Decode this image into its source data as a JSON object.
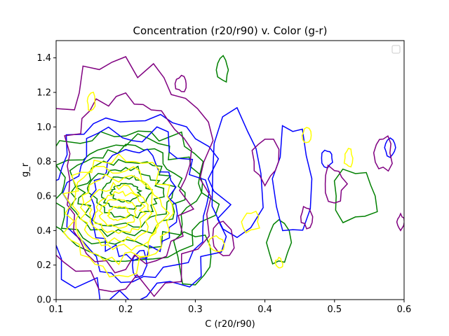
{
  "chart_data": {
    "type": "contour",
    "title": "Concentration (r20/r90) v. Color (g-r)",
    "xlabel": "C (r20/r90)",
    "ylabel": "g_r",
    "xlim": [
      0.1,
      0.6
    ],
    "ylim": [
      0.0,
      1.5
    ],
    "x_ticks": [
      "0.1",
      "0.2",
      "0.3",
      "0.4",
      "0.5",
      "0.6"
    ],
    "y_ticks": [
      "0.0",
      "0.2",
      "0.4",
      "0.6",
      "0.8",
      "1.0",
      "1.2",
      "1.4"
    ],
    "grid": false,
    "legend": "upper right, empty",
    "series": [
      {
        "color": "#008000",
        "center": [
          0.2,
          0.62
        ],
        "rings": [
          [
            0.02,
            0.05
          ],
          [
            0.035,
            0.09
          ],
          [
            0.05,
            0.14
          ],
          [
            0.065,
            0.19
          ],
          [
            0.08,
            0.25
          ],
          [
            0.1,
            0.31
          ],
          [
            0.12,
            0.38
          ]
        ],
        "blobs": [
          [
            0.34,
            1.33,
            0.008,
            0.07
          ],
          [
            0.42,
            0.33,
            0.015,
            0.12
          ],
          [
            0.53,
            0.6,
            0.03,
            0.15
          ],
          [
            0.3,
            0.25,
            0.03,
            0.15
          ]
        ]
      },
      {
        "color": "#0000ff",
        "center": [
          0.21,
          0.55
        ],
        "rings": [
          [
            0.06,
            0.3
          ],
          [
            0.1,
            0.42
          ],
          [
            0.13,
            0.55
          ]
        ],
        "blobs": [
          [
            0.36,
            0.73,
            0.035,
            0.32
          ],
          [
            0.44,
            0.7,
            0.025,
            0.3
          ],
          [
            0.49,
            0.82,
            0.008,
            0.05
          ],
          [
            0.58,
            0.88,
            0.008,
            0.05
          ],
          [
            0.22,
            0.2,
            0.01,
            0.08
          ]
        ]
      },
      {
        "color": "#800080",
        "center": [
          0.2,
          0.7
        ],
        "rings": [
          [
            0.09,
            0.5
          ],
          [
            0.12,
            0.65
          ]
        ],
        "blobs": [
          [
            0.28,
            1.25,
            0.008,
            0.05
          ],
          [
            0.34,
            0.36,
            0.015,
            0.1
          ],
          [
            0.4,
            0.8,
            0.02,
            0.12
          ],
          [
            0.46,
            0.48,
            0.008,
            0.06
          ],
          [
            0.5,
            0.67,
            0.015,
            0.1
          ],
          [
            0.57,
            0.85,
            0.012,
            0.1
          ],
          [
            0.595,
            0.45,
            0.005,
            0.04
          ]
        ]
      },
      {
        "color": "#ffff00",
        "center": [
          0.19,
          0.5
        ],
        "rings": [
          [
            0.015,
            0.04
          ],
          [
            0.025,
            0.08
          ],
          [
            0.035,
            0.12
          ],
          [
            0.045,
            0.16
          ],
          [
            0.055,
            0.21
          ],
          [
            0.065,
            0.27
          ],
          [
            0.075,
            0.33
          ]
        ],
        "blobs": [
          [
            0.15,
            1.15,
            0.006,
            0.05
          ],
          [
            0.38,
            0.45,
            0.012,
            0.06
          ],
          [
            0.33,
            0.32,
            0.01,
            0.05
          ],
          [
            0.46,
            0.95,
            0.006,
            0.04
          ],
          [
            0.52,
            0.82,
            0.006,
            0.05
          ],
          [
            0.42,
            0.21,
            0.005,
            0.03
          ]
        ]
      }
    ]
  }
}
